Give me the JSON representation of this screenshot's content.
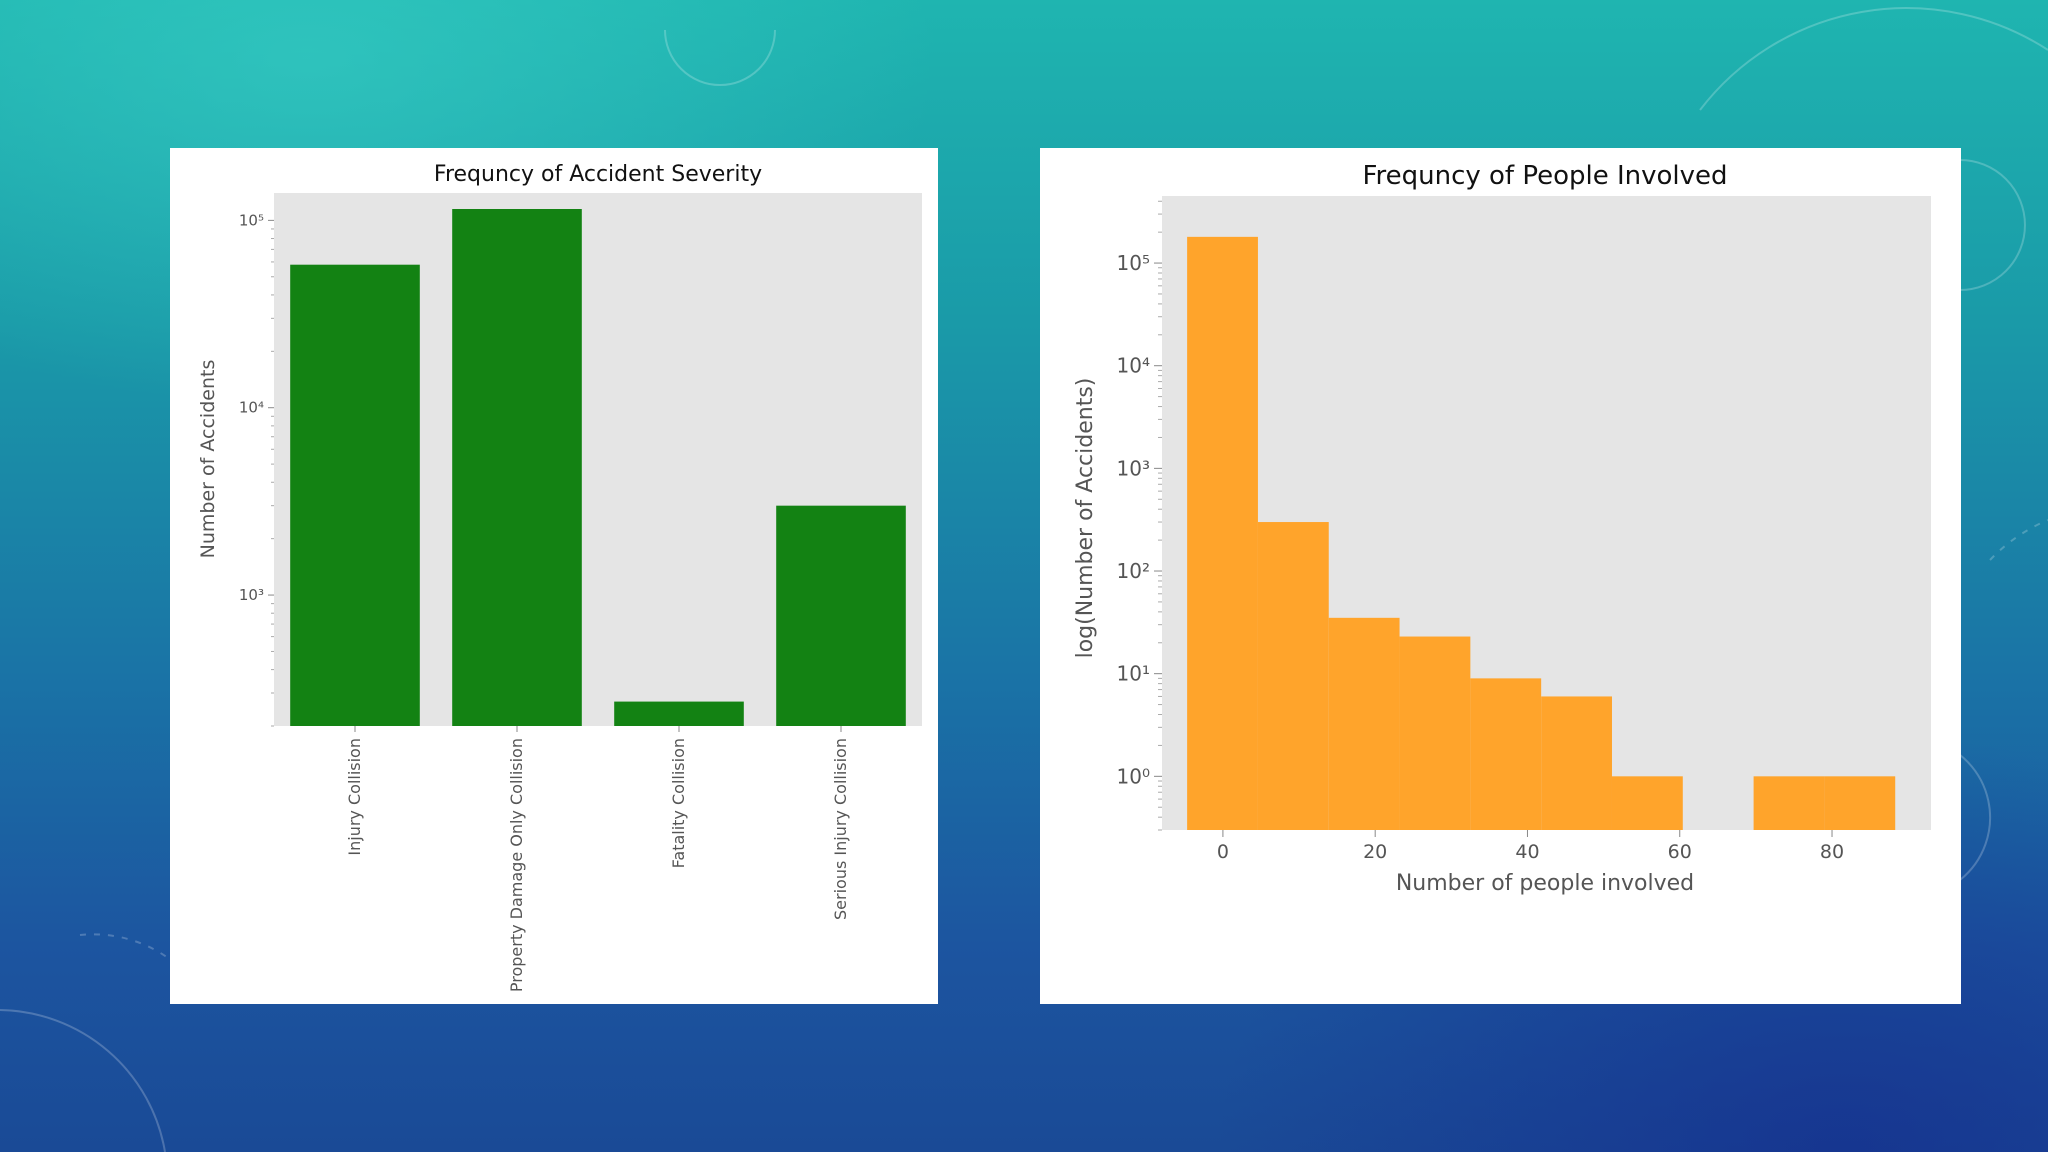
{
  "colors": {
    "bar_green": "#138213",
    "bar_orange": "#ffa42b",
    "plot_bg": "#e5e5e5"
  },
  "chart_data": [
    {
      "type": "bar",
      "title": "Frequncy of Accident Severity",
      "xlabel": "",
      "ylabel": "Number of Accidents",
      "yscale": "log",
      "ylim": [
        200,
        140000
      ],
      "yticks": [
        1000,
        10000,
        100000
      ],
      "ytick_labels": [
        "10³",
        "10⁴",
        "10⁵"
      ],
      "categories": [
        "Injury Collision",
        "Property Damage Only Collision",
        "Fatality Collision",
        "Serious Injury Collision"
      ],
      "values": [
        58000,
        115000,
        270,
        3000
      ],
      "color": "#138213"
    },
    {
      "type": "bar",
      "subtype": "histogram",
      "title": "Frequncy of People Involved",
      "xlabel": "Number of people involved",
      "ylabel": "log(Number of Accidents)",
      "yscale": "log",
      "xlim": [
        -8,
        93
      ],
      "ylim": [
        0.3,
        450000
      ],
      "xticks": [
        0,
        20,
        40,
        60,
        80
      ],
      "xtick_labels": [
        "0",
        "20",
        "40",
        "60",
        "80"
      ],
      "yticks": [
        1,
        10,
        100,
        1000,
        10000,
        100000
      ],
      "ytick_labels": [
        "10⁰",
        "10¹",
        "10²",
        "10³",
        "10⁴",
        "10⁵"
      ],
      "bin_edges": [
        -4.7,
        4.6,
        13.9,
        23.2,
        32.5,
        41.8,
        51.1,
        60.4,
        69.7,
        79.0,
        88.3
      ],
      "values": [
        180000,
        300,
        35,
        23,
        9,
        6,
        1,
        0,
        1,
        1
      ],
      "color": "#ffa42b"
    }
  ]
}
